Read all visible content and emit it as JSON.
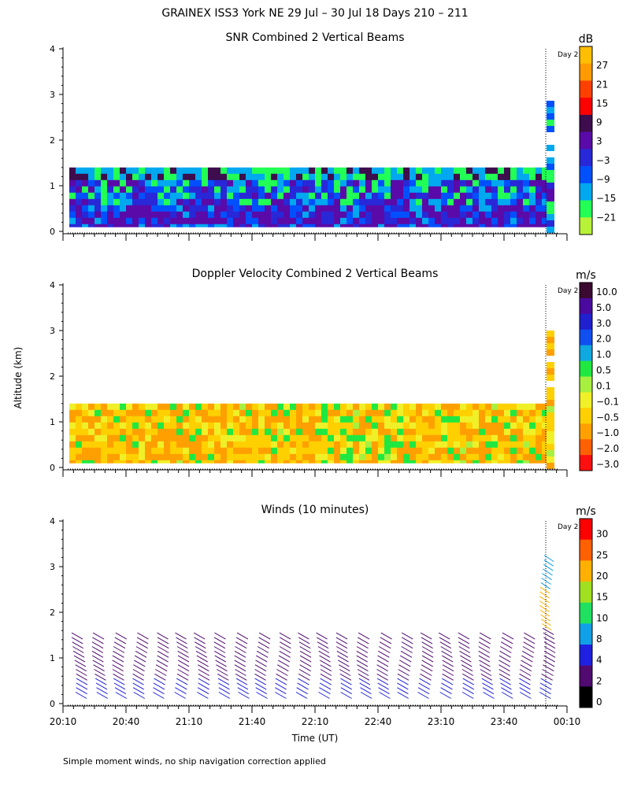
{
  "figure": {
    "title": "GRAINEX ISS3 York NE  29 Jul – 30 Jul 18 Days 210 – 211",
    "ylabel": "Altitude (km)",
    "xlabel": "Time (UT)",
    "day_marker": "Day 2",
    "footnote": "Simple moment winds, no ship navigation correction applied"
  },
  "chart_data": [
    {
      "type": "heatmap",
      "title": "SNR Combined 2 Vertical Beams",
      "xlabel": "Time (UT)",
      "ylabel": "Altitude (km)",
      "x_ticks": [
        "20:10",
        "20:40",
        "21:10",
        "21:40",
        "22:10",
        "22:40",
        "23:10",
        "23:40",
        "00:10"
      ],
      "y_ticks": [
        0,
        1,
        2,
        3,
        4
      ],
      "ylim": [
        0,
        4
      ],
      "colorbar": {
        "unit": "dB",
        "labels": [
          "27",
          "21",
          "15",
          "9",
          "3",
          "−3",
          "−9",
          "−15",
          "−21"
        ],
        "colors": [
          "#ffbf00",
          "#ff9a00",
          "#ff4000",
          "#ff0000",
          "#3d0d4d",
          "#5a0aa8",
          "#2828d8",
          "#0050ff",
          "#00a8f0",
          "#22ff55",
          "#b7f238"
        ]
      },
      "coverage_km": [
        0.1,
        1.4
      ],
      "description_values": "Data from ~0.1 to 1.4 km altitude across 20:10–00:00, extending to ~3 km after 00:00; SNR mostly −9 to 9 dB."
    },
    {
      "type": "heatmap",
      "title": "Doppler Velocity Combined 2 Vertical Beams",
      "xlabel": "Time (UT)",
      "ylabel": "Altitude (km)",
      "x_ticks": [
        "20:10",
        "20:40",
        "21:10",
        "21:40",
        "22:10",
        "22:40",
        "23:10",
        "23:40",
        "00:10"
      ],
      "y_ticks": [
        0,
        1,
        2,
        3,
        4
      ],
      "ylim": [
        0,
        4
      ],
      "colorbar": {
        "unit": "m/s",
        "labels": [
          "10.0",
          "5.0",
          "3.0",
          "2.0",
          "1.0",
          "0.5",
          "0.1",
          "−0.1",
          "−0.5",
          "−1.0",
          "−2.0",
          "−3.0"
        ],
        "colors": [
          "#3a0a30",
          "#4a0aa0",
          "#2020d0",
          "#1050f0",
          "#10a8e0",
          "#20e840",
          "#a8f040",
          "#f0f028",
          "#ffd000",
          "#ffa000",
          "#ff6000",
          "#ff1010"
        ]
      },
      "coverage_km": [
        0.1,
        1.4
      ],
      "description_values": "Velocities mostly between −1.0 and 0.5 m/s; brief downdrafts to −3.0 m/s near the surface."
    },
    {
      "type": "scatter",
      "title": "Winds (10 minutes)",
      "xlabel": "Time (UT)",
      "ylabel": "Altitude (km)",
      "x_ticks": [
        "20:10",
        "20:40",
        "21:10",
        "21:40",
        "22:10",
        "22:40",
        "23:10",
        "23:40",
        "00:10"
      ],
      "y_ticks": [
        0,
        1,
        2,
        3,
        4
      ],
      "ylim": [
        0,
        4
      ],
      "colorbar": {
        "unit": "m/s",
        "labels": [
          "30",
          "25",
          "20",
          "15",
          "10",
          "8",
          "4",
          "2",
          "0"
        ],
        "colors": [
          "#ff0000",
          "#ff6000",
          "#ffb000",
          "#a0e020",
          "#20e060",
          "#10a0e8",
          "#2020e0",
          "#500a70",
          "#000000"
        ]
      },
      "profile_times": [
        "20:15",
        "20:25",
        "20:35",
        "20:45",
        "20:55",
        "21:05",
        "21:15",
        "21:25",
        "21:35",
        "21:45",
        "21:55",
        "22:05",
        "22:15",
        "22:25",
        "22:35",
        "22:45",
        "22:55",
        "23:05",
        "23:15",
        "23:25",
        "23:35",
        "23:45",
        "23:55",
        "00:05"
      ],
      "max_altitude_km": 1.6,
      "last_profile_max_altitude_km": 3.3,
      "description_values": "Wind barbs every 10 minutes from ~0.2 to ~1.6 km, speeds mostly 2–8 m/s; final profile reaches ~3.3 km with 8–20 m/s."
    }
  ]
}
